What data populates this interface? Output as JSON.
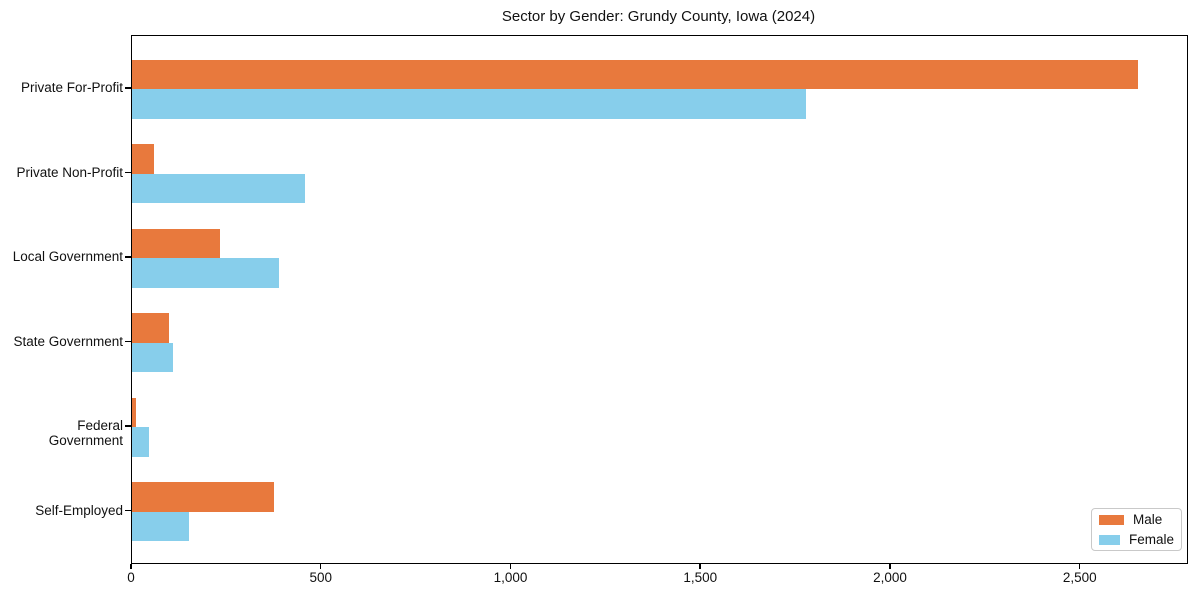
{
  "chart_data": {
    "type": "bar",
    "orientation": "horizontal",
    "title": "Sector by Gender: Grundy County, Iowa (2024)",
    "categories": [
      "Private For-Profit",
      "Private Non-Profit",
      "Local Government",
      "State Government",
      "Federal Government",
      "Self-Employed"
    ],
    "series": [
      {
        "name": "Male",
        "color": "#e8793d",
        "values": [
          2650,
          59,
          233,
          97,
          10,
          373
        ]
      },
      {
        "name": "Female",
        "color": "#87ceeb",
        "values": [
          1775,
          455,
          387,
          107,
          44,
          151
        ]
      }
    ],
    "xlabel": "",
    "ylabel": "",
    "xlim": [
      0,
      2780
    ],
    "x_ticks": [
      0,
      500,
      1000,
      1500,
      2000,
      2500
    ],
    "x_tick_labels": [
      "0",
      "500",
      "1,000",
      "1,500",
      "2,000",
      "2,500"
    ],
    "grid": false,
    "legend": {
      "position": "lower right",
      "entries": [
        "Male",
        "Female"
      ]
    }
  },
  "colors": {
    "background": "#ffffff",
    "spine": "#000000",
    "text": "#111111",
    "legend_border": "#c9c9c9"
  }
}
